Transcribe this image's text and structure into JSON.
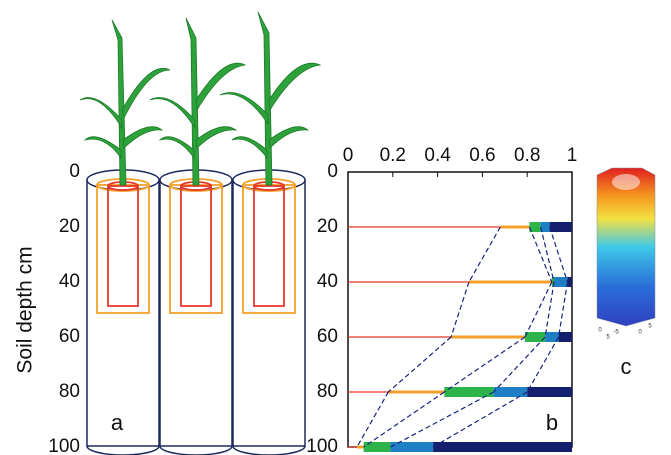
{
  "chart_data": {
    "type": "stacked_barh",
    "y_label": "Soil depth cm",
    "xlim": [
      0,
      1
    ],
    "xticks": [
      0,
      0.2,
      0.4,
      0.6,
      0.8,
      1
    ],
    "ylim": [
      0,
      100
    ],
    "yticks": [
      0,
      20,
      40,
      60,
      80,
      100
    ],
    "y_inverted": true,
    "y": [
      20,
      40,
      60,
      80,
      100
    ],
    "series": [
      {
        "color": "#e8382b",
        "values": [
          0.68,
          0.54,
          0.46,
          0.18,
          0.04
        ]
      },
      {
        "color": "#f5a02a",
        "values": [
          0.13,
          0.37,
          0.33,
          0.25,
          0.03
        ]
      },
      {
        "color": "#2cb34a",
        "values": [
          0.05,
          0.01,
          0.09,
          0.22,
          0.12
        ]
      },
      {
        "color": "#1f7fc4",
        "values": [
          0.04,
          0.06,
          0.06,
          0.15,
          0.19
        ]
      },
      {
        "color": "#141f6e",
        "values": [
          0.1,
          0.02,
          0.06,
          0.2,
          0.62
        ]
      }
    ],
    "connector_color": "#1a237e",
    "panel_labels": [
      "a",
      "b",
      "c"
    ],
    "panel_c_ticks": [
      "0",
      "5",
      "-5",
      "0",
      "5"
    ]
  }
}
